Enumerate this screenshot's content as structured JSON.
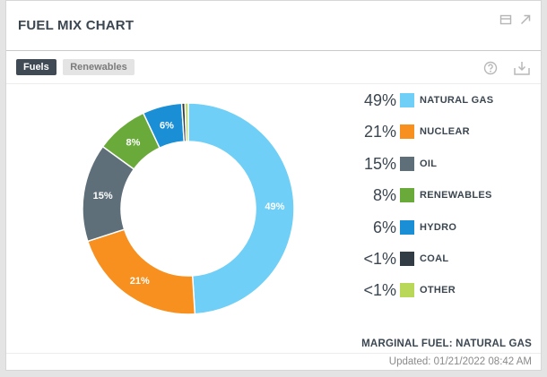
{
  "header": {
    "title": "FUEL MIX CHART",
    "restore_icon": "restore-window-icon",
    "expand_icon": "expand-arrow-icon"
  },
  "tabs": [
    {
      "label": "Fuels",
      "active": true
    },
    {
      "label": "Renewables",
      "active": false
    }
  ],
  "toolbar": {
    "help_icon": "question-circle-icon",
    "download_icon": "download-tray-icon"
  },
  "chart_data": {
    "type": "pie",
    "donut": true,
    "slices": [
      {
        "name": "NATURAL GAS",
        "value": 49,
        "label": "49%",
        "legend_value": "49%",
        "color": "#6fcff6"
      },
      {
        "name": "NUCLEAR",
        "value": 21,
        "label": "21%",
        "legend_value": "21%",
        "color": "#f7901e"
      },
      {
        "name": "OIL",
        "value": 15,
        "label": "15%",
        "legend_value": "15%",
        "color": "#5f6f7a"
      },
      {
        "name": "RENEWABLES",
        "value": 8,
        "label": "8%",
        "legend_value": "8%",
        "color": "#6aaa3a"
      },
      {
        "name": "HYDRO",
        "value": 6,
        "label": "6%",
        "legend_value": "6%",
        "color": "#1a8fd6"
      },
      {
        "name": "COAL",
        "value": 0.5,
        "label": "",
        "legend_value": "<1%",
        "color": "#323c44"
      },
      {
        "name": "OTHER",
        "value": 0.5,
        "label": "",
        "legend_value": "<1%",
        "color": "#b9d85a"
      }
    ],
    "legend_position": "right"
  },
  "marginal_fuel": "MARGINAL FUEL: NATURAL GAS",
  "updated": "Updated: 01/21/2022 08:42 AM"
}
